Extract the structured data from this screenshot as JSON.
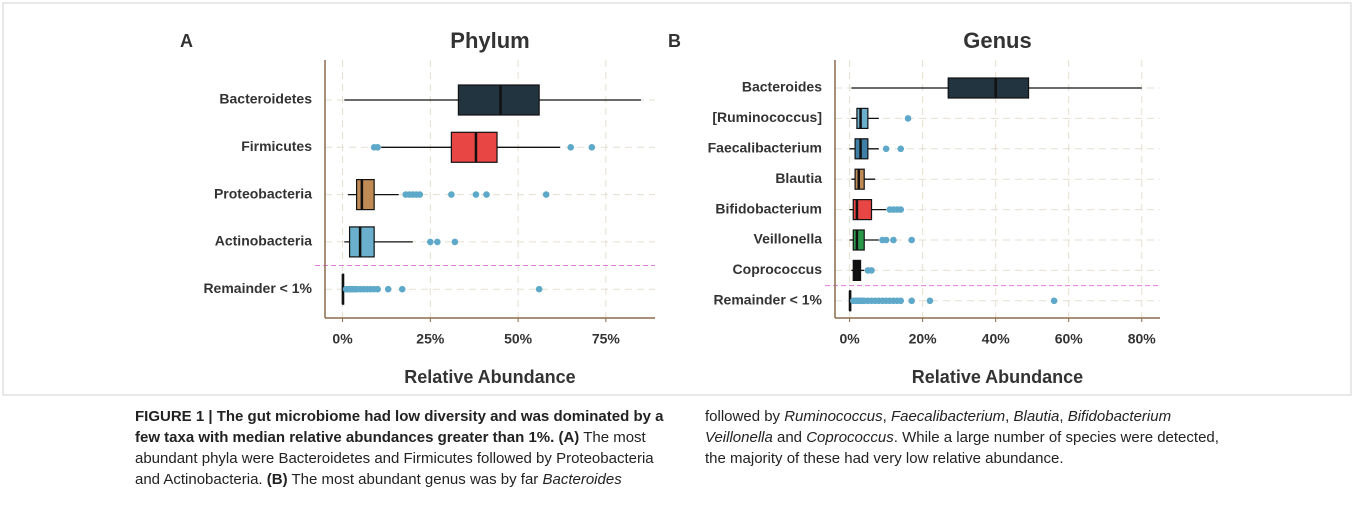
{
  "chart_data": [
    {
      "type": "box",
      "panel": "A",
      "title": "Phylum",
      "x_label": "Relative Abundance",
      "xlim": [
        -5,
        89
      ],
      "xticks": [
        {
          "value": 0,
          "label": "0%"
        },
        {
          "value": 25,
          "label": "25%"
        },
        {
          "value": 50,
          "label": "50%"
        },
        {
          "value": 75,
          "label": "75%"
        }
      ],
      "grid": true,
      "outlier_color": "#5ea9c9",
      "categories": [
        "Bacteroidetes",
        "Firmicutes",
        "Proteobacteria",
        "Actinobacteria",
        "Remainder < 1%"
      ],
      "boxes": [
        {
          "color": "#22343f",
          "whisker_low": 0.5,
          "q1": 33,
          "median": 45,
          "q3": 56,
          "whisker_high": 85,
          "outliers": []
        },
        {
          "color": "#e84545",
          "whisker_low": 11,
          "q1": 31,
          "median": 38,
          "q3": 44,
          "whisker_high": 62,
          "outliers": [
            9,
            10,
            65,
            71
          ]
        },
        {
          "color": "#c08a55",
          "whisker_low": 1.5,
          "q1": 4,
          "median": 5.5,
          "q3": 9,
          "whisker_high": 16,
          "outliers": [
            18,
            19,
            20,
            21,
            22,
            31,
            38,
            41,
            58
          ]
        },
        {
          "color": "#6ab0cc",
          "whisker_low": 0.5,
          "q1": 2,
          "median": 5,
          "q3": 9,
          "whisker_high": 20,
          "outliers": [
            25,
            27,
            32
          ]
        },
        {
          "color": "#111111",
          "whisker_low": 0,
          "q1": 0,
          "median": 0.1,
          "q3": 0.3,
          "whisker_high": 0.8,
          "outliers": [
            1,
            1.5,
            2,
            2.5,
            3,
            3.5,
            4,
            5,
            6,
            7,
            8,
            9,
            10,
            13,
            17,
            56
          ]
        }
      ]
    },
    {
      "type": "box",
      "panel": "B",
      "title": "Genus",
      "x_label": "Relative Abundance",
      "xlim": [
        -4,
        85
      ],
      "xticks": [
        {
          "value": 0,
          "label": "0%"
        },
        {
          "value": 20,
          "label": "20%"
        },
        {
          "value": 40,
          "label": "40%"
        },
        {
          "value": 60,
          "label": "60%"
        },
        {
          "value": 80,
          "label": "80%"
        }
      ],
      "grid": true,
      "outlier_color": "#5ea9c9",
      "categories": [
        "Bacteroides",
        "[Ruminococcus]",
        "Faecalibacterium",
        "Blautia",
        "Bifidobacterium",
        "Veillonella",
        "Coprococcus",
        "Remainder < 1%"
      ],
      "boxes": [
        {
          "color": "#22343f",
          "whisker_low": 0.5,
          "q1": 27,
          "median": 40,
          "q3": 49,
          "whisker_high": 80,
          "outliers": []
        },
        {
          "color": "#6ab0cc",
          "whisker_low": 0.5,
          "q1": 2,
          "median": 3,
          "q3": 5,
          "whisker_high": 8,
          "outliers": [
            16
          ]
        },
        {
          "color": "#3f7fa6",
          "whisker_low": 0,
          "q1": 1.5,
          "median": 3,
          "q3": 5,
          "whisker_high": 8,
          "outliers": [
            10,
            14
          ]
        },
        {
          "color": "#c08a55",
          "whisker_low": 0.5,
          "q1": 1.5,
          "median": 2.5,
          "q3": 4,
          "whisker_high": 7,
          "outliers": []
        },
        {
          "color": "#e84545",
          "whisker_low": 0,
          "q1": 1,
          "median": 2,
          "q3": 6,
          "whisker_high": 10,
          "outliers": [
            11,
            12,
            13,
            14
          ]
        },
        {
          "color": "#2a9a4a",
          "whisker_low": 0,
          "q1": 1,
          "median": 2,
          "q3": 4,
          "whisker_high": 8,
          "outliers": [
            9,
            10,
            12,
            17
          ]
        },
        {
          "color": "#111111",
          "whisker_low": 0.5,
          "q1": 1,
          "median": 2,
          "q3": 3,
          "whisker_high": 4,
          "outliers": [
            5,
            6
          ]
        },
        {
          "color": "#111111",
          "whisker_low": 0,
          "q1": 0,
          "median": 0.1,
          "q3": 0.3,
          "whisker_high": 0.7,
          "outliers": [
            1,
            1.5,
            2,
            2.5,
            3,
            3.5,
            4,
            5,
            6,
            7,
            8,
            9,
            10,
            11,
            12,
            13,
            14,
            17,
            22,
            56
          ]
        }
      ]
    }
  ],
  "caption": [
    {
      "text": "FIGURE 1 | The gut microbiome had low diversity and was dominated by a few taxa with median relative abundances greater than 1%. (A)",
      "style": "bold"
    },
    {
      "text": " The most abundant phyla were Bacteroidetes and Firmicutes followed by Proteobacteria and Actinobacteria. ",
      "style": "normal"
    },
    {
      "text": "(B)",
      "style": "bold"
    },
    {
      "text": " The most abundant genus was by far ",
      "style": "normal"
    },
    {
      "text": "Bacteroides",
      "style": "italic"
    },
    {
      "text": " followed by ",
      "style": "normal"
    },
    {
      "text": "Ruminococcus",
      "style": "italic"
    },
    {
      "text": ", ",
      "style": "normal"
    },
    {
      "text": "Faecalibacterium",
      "style": "italic"
    },
    {
      "text": ", ",
      "style": "normal"
    },
    {
      "text": "Blautia",
      "style": "italic"
    },
    {
      "text": ", ",
      "style": "normal"
    },
    {
      "text": "Bifidobacterium Veillonella",
      "style": "italic"
    },
    {
      "text": " and ",
      "style": "normal"
    },
    {
      "text": "Coprococcus",
      "style": "italic"
    },
    {
      "text": ". While a large number of species were detected, the majority of these had very low relative abundance.",
      "style": "normal"
    }
  ]
}
